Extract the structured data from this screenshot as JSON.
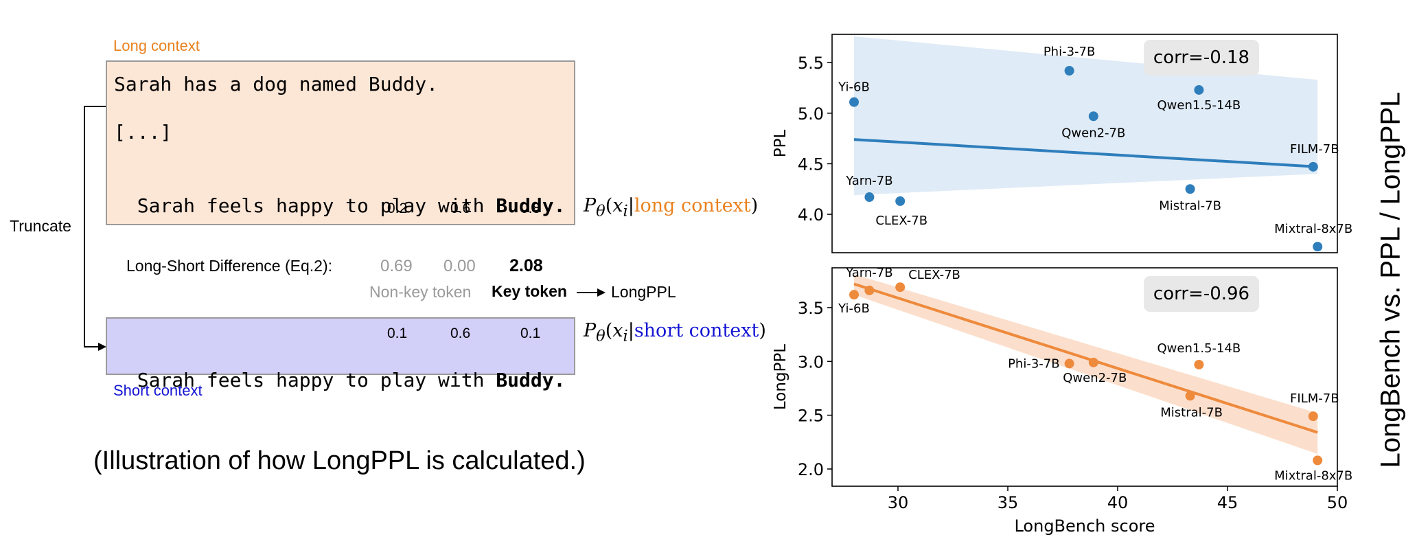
{
  "illustration": {
    "long_label": "Long context",
    "long_lines": [
      "Sarah has a dog named Buddy.",
      "[...]",
      "Sarah feels happy to play with"
    ],
    "key_word": "Buddy.",
    "long_probs": [
      "0.2",
      "0.6",
      "0.8"
    ],
    "long_prob_prefix": "P",
    "long_prob_cond": "long context",
    "truncate": "Truncate",
    "diff_label": "Long-Short Difference (Eq.2):",
    "diff_values": [
      "0.69",
      "0.00",
      "2.08"
    ],
    "nonkey_label": "Non-key token",
    "key_label": "Key token",
    "longppl_label": "LongPPL",
    "short_probs": [
      "0.1",
      "0.6",
      "0.1"
    ],
    "short_line": "Sarah feels happy to play with",
    "short_prob_cond": "short context",
    "short_label": "Short context",
    "caption": "(Illustration of how LongPPL is calculated.)"
  },
  "side_title": "LongBench vs. PPL / LongPPL",
  "colors": {
    "blue": "#2e7ebc",
    "orange": "#ee8a3c",
    "ctx_orange": "#e9821f",
    "ctx_blue": "#1515d4"
  },
  "chart_data": [
    {
      "type": "scatter",
      "ylabel": "PPL",
      "xlim": [
        27,
        50
      ],
      "ylim": [
        3.62,
        5.78
      ],
      "yticks": [
        4.0,
        4.5,
        5.0,
        5.5
      ],
      "annotation": "corr=-0.18",
      "points": [
        {
          "label": "Yi-6B",
          "x": 28.0,
          "y": 5.11
        },
        {
          "label": "Phi-3-7B",
          "x": 37.8,
          "y": 5.42
        },
        {
          "label": "Qwen1.5-14B",
          "x": 43.7,
          "y": 5.23
        },
        {
          "label": "Qwen2-7B",
          "x": 38.9,
          "y": 4.97
        },
        {
          "label": "FILM-7B",
          "x": 48.9,
          "y": 4.47
        },
        {
          "label": "Yarn-7B",
          "x": 28.7,
          "y": 4.17
        },
        {
          "label": "CLEX-7B",
          "x": 30.1,
          "y": 4.13
        },
        {
          "label": "Mistral-7B",
          "x": 43.3,
          "y": 4.25
        },
        {
          "label": "Mixtral-8x7B",
          "x": 49.1,
          "y": 3.68
        }
      ],
      "fit": {
        "x": [
          28.0,
          49.1
        ],
        "y": [
          4.74,
          4.47
        ]
      },
      "band_upper": [
        5.76,
        5.33
      ],
      "band_lower": [
        4.19,
        4.4
      ]
    },
    {
      "type": "scatter",
      "xlabel": "LongBench score",
      "ylabel": "LongPPL",
      "xlim": [
        27,
        50
      ],
      "ylim": [
        1.84,
        3.87
      ],
      "xticks": [
        30,
        35,
        40,
        45,
        50
      ],
      "yticks": [
        2.0,
        2.5,
        3.0,
        3.5
      ],
      "annotation": "corr=-0.96",
      "points": [
        {
          "label": "Yi-6B",
          "x": 28.0,
          "y": 3.62
        },
        {
          "label": "Yarn-7B",
          "x": 28.7,
          "y": 3.66
        },
        {
          "label": "CLEX-7B",
          "x": 30.1,
          "y": 3.69
        },
        {
          "label": "Phi-3-7B",
          "x": 37.8,
          "y": 2.98
        },
        {
          "label": "Qwen2-7B",
          "x": 38.9,
          "y": 2.99
        },
        {
          "label": "Qwen1.5-14B",
          "x": 43.7,
          "y": 2.97
        },
        {
          "label": "Mistral-7B",
          "x": 43.3,
          "y": 2.68
        },
        {
          "label": "FILM-7B",
          "x": 48.9,
          "y": 2.49
        },
        {
          "label": "Mixtral-8x7B",
          "x": 49.1,
          "y": 2.08
        }
      ],
      "fit": {
        "x": [
          28.0,
          49.1
        ],
        "y": [
          3.72,
          2.34
        ]
      },
      "band_upper": [
        3.81,
        2.52
      ],
      "band_lower": [
        3.62,
        2.14
      ]
    }
  ]
}
